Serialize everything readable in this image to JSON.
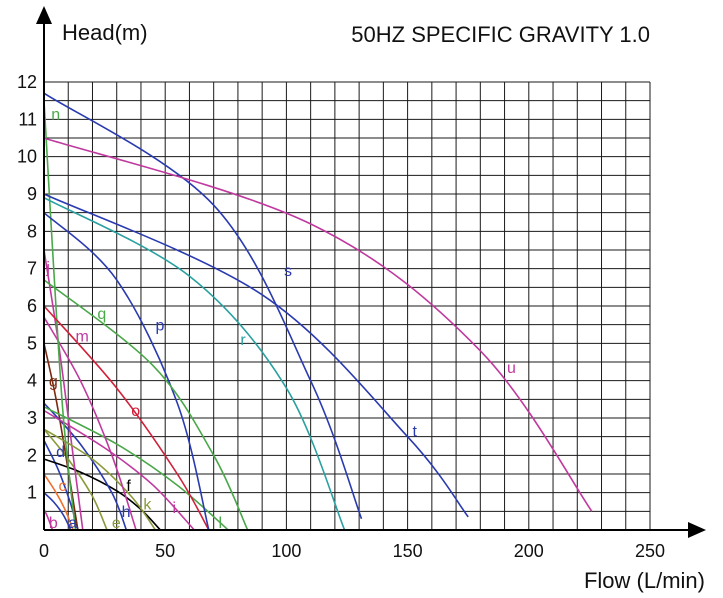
{
  "chart_data": {
    "type": "line",
    "title": "50HZ SPECIFIC GRAVITY 1.0",
    "xlabel": "Flow (L/min)",
    "ylabel": "Head(m)",
    "xlim": [
      0,
      250
    ],
    "ylim": [
      0,
      12
    ],
    "x_ticks": [
      "0",
      "50",
      "100",
      "150",
      "200",
      "250"
    ],
    "y_ticks": [
      "1",
      "2",
      "3",
      "4",
      "5",
      "6",
      "7",
      "8",
      "9",
      "10",
      "11",
      "12"
    ],
    "grid": true,
    "grid_step": {
      "x": 10,
      "y": 0.5
    },
    "series": [
      {
        "name": "a",
        "color": "#2a3ab0",
        "x": [
          0,
          4,
          8,
          11
        ],
        "y": [
          1.0,
          0.75,
          0.4,
          0
        ],
        "label_at": [
          10,
          0.05
        ]
      },
      {
        "name": "b",
        "color": "#c0399f",
        "x": [
          0,
          1.5,
          3.5
        ],
        "y": [
          0.55,
          0.35,
          0
        ],
        "label_at": [
          2,
          0.05
        ]
      },
      {
        "name": "c",
        "color": "#f07030",
        "x": [
          0,
          5,
          9,
          12
        ],
        "y": [
          1.5,
          1.0,
          0.5,
          0
        ],
        "label_at": [
          6,
          1.05
        ]
      },
      {
        "name": "d",
        "color": "#2a3ab0",
        "x": [
          0,
          6,
          11,
          14
        ],
        "y": [
          2.4,
          1.6,
          0.7,
          0
        ],
        "label_at": [
          5,
          1.95
        ]
      },
      {
        "name": "e",
        "color": "#8a9a3a",
        "x": [
          0,
          10,
          20,
          26
        ],
        "y": [
          2.7,
          1.9,
          0.9,
          0
        ],
        "label_at": [
          28,
          0.05
        ]
      },
      {
        "name": "f",
        "color": "#000000",
        "x": [
          0,
          15,
          30,
          40,
          48
        ],
        "y": [
          1.9,
          1.55,
          1.05,
          0.55,
          0
        ],
        "label_at": [
          34,
          1.05
        ]
      },
      {
        "name": "g",
        "color": "#7a2a10",
        "x": [
          0,
          5,
          10,
          14
        ],
        "y": [
          5.0,
          3.5,
          1.6,
          0
        ],
        "label_at": [
          2,
          3.85
        ]
      },
      {
        "name": "h",
        "color": "#2a3ab0",
        "x": [
          0,
          15,
          28,
          34
        ],
        "y": [
          3.4,
          2.3,
          1.0,
          0
        ],
        "label_at": [
          32,
          0.35
        ]
      },
      {
        "name": "i",
        "color": "#c0399f",
        "x": [
          0,
          25,
          45,
          62
        ],
        "y": [
          3.2,
          2.2,
          1.2,
          0
        ],
        "label_at": [
          53,
          0.45
        ]
      },
      {
        "name": "j",
        "color": "#c0399f",
        "x": [
          0,
          6,
          12,
          16
        ],
        "y": [
          7.5,
          5.0,
          2.0,
          0
        ],
        "label_at": [
          1,
          6.9
        ]
      },
      {
        "name": "k",
        "color": "#8a9a3a",
        "x": [
          0,
          20,
          36,
          46
        ],
        "y": [
          2.7,
          1.9,
          0.9,
          0
        ],
        "label_at": [
          41,
          0.55
        ]
      },
      {
        "name": "l",
        "color": "#4aa84a",
        "x": [
          0,
          30,
          55,
          76
        ],
        "y": [
          3.3,
          2.3,
          1.2,
          0
        ],
        "label_at": [
          72,
          0.05
        ]
      },
      {
        "name": "m",
        "color": "#c0399f",
        "x": [
          0,
          15,
          28,
          38
        ],
        "y": [
          5.7,
          4.0,
          2.0,
          0
        ],
        "label_at": [
          13,
          5.05
        ]
      },
      {
        "name": "n",
        "color": "#4aa84a",
        "x": [
          0,
          4,
          8,
          13
        ],
        "y": [
          11.5,
          7.0,
          3.0,
          0
        ],
        "label_at": [
          3,
          11.0
        ]
      },
      {
        "name": "o",
        "color": "#d0203a",
        "x": [
          0,
          30,
          55,
          68
        ],
        "y": [
          6.0,
          3.8,
          1.5,
          0
        ],
        "label_at": [
          36,
          3.05
        ]
      },
      {
        "name": "p",
        "color": "#2a3ab0",
        "x": [
          0,
          30,
          55,
          68
        ],
        "y": [
          8.5,
          6.7,
          3.4,
          0
        ],
        "label_at": [
          46,
          5.35
        ]
      },
      {
        "name": "q",
        "color": "#4aa84a",
        "x": [
          0,
          45,
          70,
          84
        ],
        "y": [
          6.7,
          4.4,
          2.0,
          0
        ],
        "label_at": [
          22,
          5.65
        ]
      },
      {
        "name": "r",
        "color": "#2aa0a0",
        "x": [
          0,
          60,
          100,
          124
        ],
        "y": [
          8.9,
          6.8,
          3.8,
          0
        ],
        "label_at": [
          81,
          4.95
        ]
      },
      {
        "name": "s",
        "color": "#2a3ab0",
        "x": [
          0,
          70,
          110,
          131
        ],
        "y": [
          11.7,
          8.7,
          4.0,
          0.3
        ],
        "label_at": [
          99,
          6.8
        ]
      },
      {
        "name": "t",
        "color": "#2a3ab0",
        "x": [
          0,
          90,
          150,
          175
        ],
        "y": [
          9.0,
          6.3,
          2.5,
          0.35
        ],
        "label_at": [
          152,
          2.5
        ]
      },
      {
        "name": "u",
        "color": "#c0399f",
        "x": [
          0,
          110,
          180,
          226
        ],
        "y": [
          10.5,
          8.2,
          4.8,
          0.5
        ],
        "label_at": [
          191,
          4.2
        ]
      }
    ]
  }
}
